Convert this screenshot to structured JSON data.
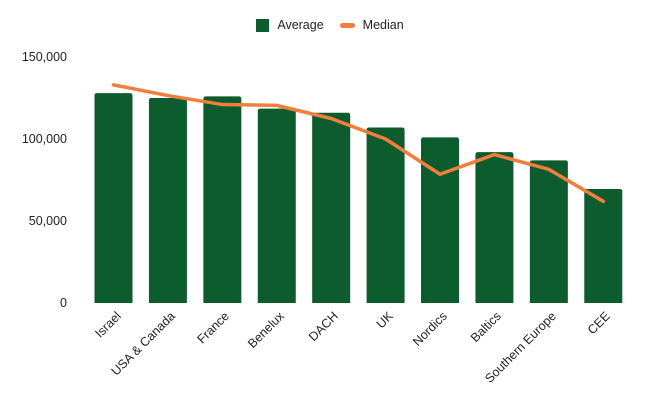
{
  "colors": {
    "bar": "#0C5C2E",
    "line": "#F07E3C",
    "text": "#222222",
    "background": "#FFFFFF"
  },
  "chart_data": {
    "type": "bar",
    "title": "",
    "xlabel": "",
    "ylabel": "",
    "categories": [
      "Israel",
      "USA & Canada",
      "France",
      "Benelux",
      "DACH",
      "UK",
      "Nordics",
      "Baltics",
      "Southern Europe",
      "CEE"
    ],
    "series": [
      {
        "name": "Average",
        "type": "bar",
        "color": "#0C5C2E",
        "values": [
          128000,
          125000,
          126000,
          118500,
          116000,
          107000,
          101000,
          92000,
          87000,
          69500
        ]
      },
      {
        "name": "Median",
        "type": "line",
        "color": "#F07E3C",
        "values": [
          133000,
          126500,
          121000,
          120500,
          112500,
          100000,
          78500,
          90500,
          81500,
          62000
        ]
      }
    ],
    "ylim": [
      0,
      150000
    ],
    "yticks": [
      0,
      50000,
      100000,
      150000
    ],
    "ytick_labels": [
      "0",
      "50,000",
      "100,000",
      "150,000"
    ],
    "grid": false,
    "legend_position": "top"
  }
}
